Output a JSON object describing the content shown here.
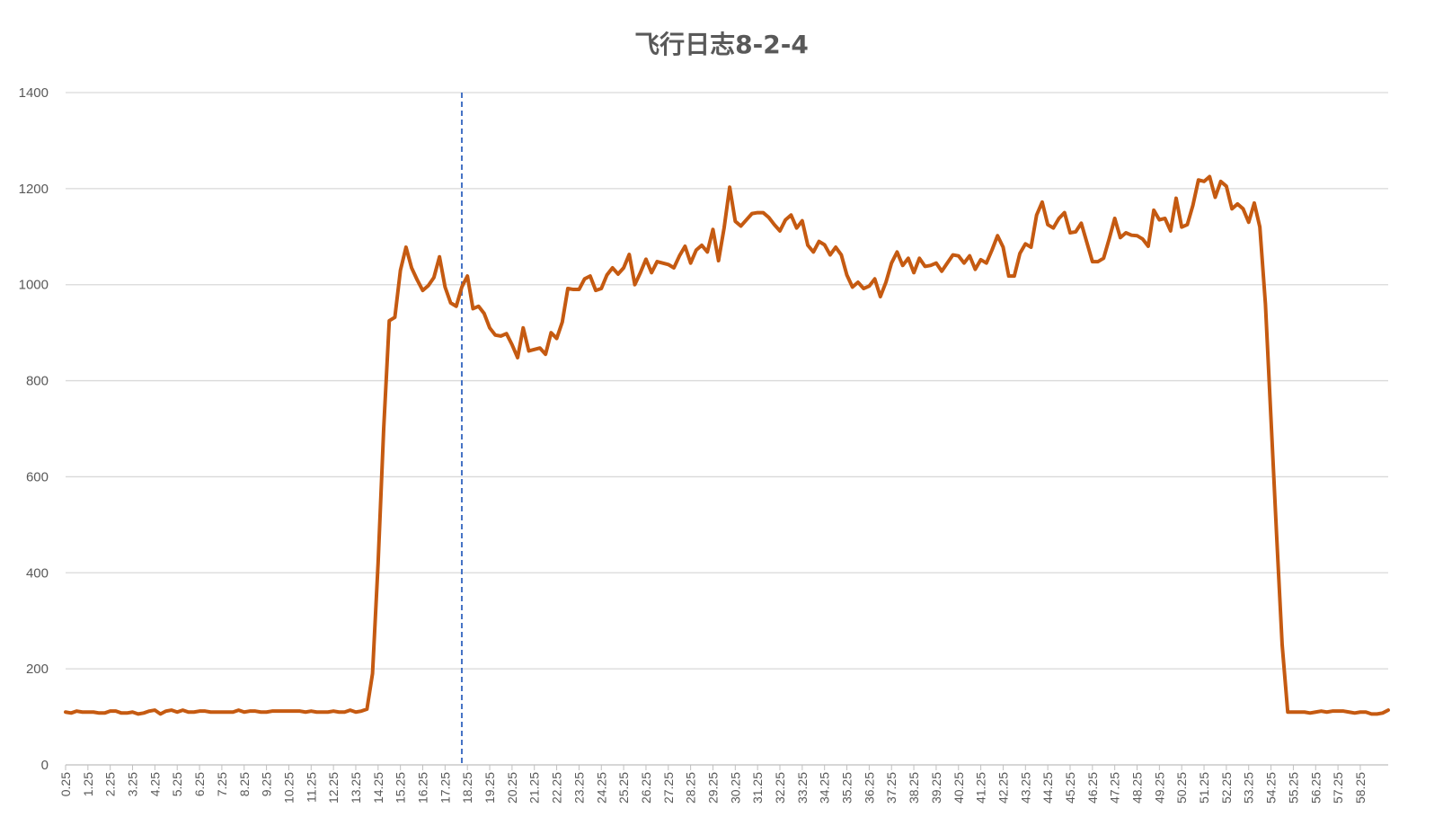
{
  "chart_data": {
    "type": "line",
    "title": "飞行日志8-2-4",
    "xlabel": "",
    "ylabel": "",
    "ylim": [
      0,
      1400
    ],
    "yticks": [
      0,
      200,
      400,
      600,
      800,
      1000,
      1200,
      1400
    ],
    "x_start": 0.25,
    "x_step": 0.25,
    "x_tick_labels": [
      "0.25",
      "1.25",
      "2.25",
      "3.25",
      "4.25",
      "5.25",
      "6.25",
      "7.25",
      "8.25",
      "9.25",
      "10.25",
      "11.25",
      "12.25",
      "13.25",
      "14.25",
      "15.25",
      "16.25",
      "17.25",
      "18.25",
      "19.25",
      "20.25",
      "21.25",
      "22.25",
      "23.25",
      "24.25",
      "25.25",
      "26.25",
      "27.25",
      "28.25",
      "29.25",
      "30.25",
      "31.25",
      "32.25",
      "33.25",
      "34.25",
      "35.25",
      "36.25",
      "37.25",
      "38.25",
      "39.25",
      "40.25",
      "41.25",
      "42.25",
      "43.25",
      "44.25",
      "45.25",
      "46.25",
      "47.25",
      "48.25",
      "49.25",
      "50.25",
      "51.25",
      "52.25",
      "53.25",
      "54.25",
      "55.25",
      "56.25",
      "57.25",
      "58.25"
    ],
    "grid": true,
    "legend": "none",
    "marker_line_x": 18.0,
    "colors": {
      "series": "#C55A11",
      "marker_line": "#4472C4",
      "grid": "#D9D9D9",
      "axis": "#BFBFBF"
    },
    "series": [
      {
        "values": [
          110,
          108,
          112,
          110,
          110,
          110,
          108,
          108,
          112,
          112,
          108,
          108,
          110,
          106,
          108,
          112,
          114,
          106,
          112,
          114,
          110,
          114,
          110,
          110,
          112,
          112,
          110,
          110,
          110,
          110,
          110,
          114,
          110,
          112,
          112,
          110,
          110,
          112,
          112,
          112,
          112,
          112,
          112,
          110,
          112,
          110,
          110,
          110,
          112,
          110,
          110,
          114,
          110,
          112,
          116,
          190,
          420,
          700,
          925,
          932,
          1030,
          1078,
          1035,
          1010,
          988,
          998,
          1015,
          1058,
          995,
          962,
          955,
          995,
          1018,
          950,
          955,
          940,
          910,
          895,
          893,
          898,
          875,
          848,
          910,
          862,
          865,
          868,
          855,
          900,
          888,
          922,
          992,
          990,
          990,
          1012,
          1018,
          988,
          992,
          1020,
          1035,
          1022,
          1035,
          1063,
          1000,
          1025,
          1053,
          1025,
          1048,
          1045,
          1042,
          1035,
          1060,
          1080,
          1045,
          1072,
          1082,
          1068,
          1115,
          1050,
          1118,
          1203,
          1132,
          1122,
          1135,
          1148,
          1150,
          1150,
          1140,
          1125,
          1112,
          1135,
          1145,
          1118,
          1133,
          1082,
          1068,
          1090,
          1083,
          1062,
          1078,
          1062,
          1020,
          995,
          1005,
          992,
          997,
          1012,
          975,
          1005,
          1045,
          1068,
          1040,
          1055,
          1025,
          1055,
          1038,
          1040,
          1045,
          1028,
          1045,
          1062,
          1060,
          1045,
          1060,
          1032,
          1052,
          1045,
          1072,
          1102,
          1078,
          1018,
          1018,
          1065,
          1085,
          1078,
          1145,
          1172,
          1125,
          1118,
          1138,
          1150,
          1108,
          1110,
          1128,
          1088,
          1048,
          1048,
          1055,
          1095,
          1138,
          1098,
          1108,
          1103,
          1102,
          1095,
          1080,
          1155,
          1135,
          1138,
          1112,
          1180,
          1120,
          1125,
          1165,
          1218,
          1215,
          1225,
          1182,
          1215,
          1205,
          1158,
          1168,
          1158,
          1130,
          1170,
          1120,
          960,
          720,
          480,
          250,
          110,
          110,
          110,
          110,
          108,
          110,
          112,
          110,
          112,
          112,
          112,
          110,
          108,
          110,
          110,
          106,
          106,
          108,
          114
        ]
      }
    ]
  }
}
